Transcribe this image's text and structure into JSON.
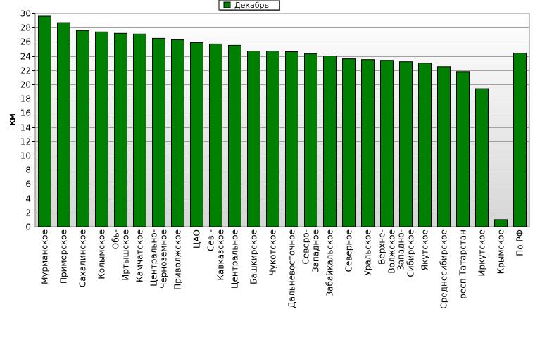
{
  "chart_data": {
    "type": "bar",
    "title": "",
    "xlabel": "",
    "ylabel": "км",
    "ylim": [
      0,
      30
    ],
    "ytick_step": 2,
    "grid": true,
    "legend_position": "top-center",
    "series": [
      {
        "name": "Декабрь",
        "color": "#008000",
        "values": [
          29.6,
          28.7,
          27.6,
          27.4,
          27.2,
          27.1,
          26.5,
          26.3,
          25.9,
          25.7,
          25.5,
          24.7,
          24.7,
          24.6,
          24.3,
          24.0,
          23.6,
          23.5,
          23.4,
          23.2,
          23.0,
          22.5,
          21.8,
          19.4,
          1.0,
          24.4
        ]
      }
    ],
    "categories": [
      [
        "Мурманское"
      ],
      [
        "Приморское"
      ],
      [
        "Сахалинское"
      ],
      [
        "Колымское"
      ],
      [
        "Обь-",
        "Иртышское"
      ],
      [
        "Камчатское"
      ],
      [
        "Центрально-",
        "Черноземное"
      ],
      [
        "Приволжское"
      ],
      [
        "ЦАО"
      ],
      [
        "Сев.-",
        "Кавказское"
      ],
      [
        "Центральное"
      ],
      [
        "Башкирское"
      ],
      [
        "Чукотское"
      ],
      [
        "Дальневосточное"
      ],
      [
        "Северо-",
        "Западное"
      ],
      [
        "Забайкальское"
      ],
      [
        "Северное"
      ],
      [
        "Уральское"
      ],
      [
        "Верхне-",
        "Волжское"
      ],
      [
        "Западно-",
        "Сибирское"
      ],
      [
        "Якутское"
      ],
      [
        "Среднесибирское"
      ],
      [
        "респ.Татарстан"
      ],
      [
        "Иркутское"
      ],
      [
        "Крымское"
      ],
      [
        "По РФ"
      ]
    ]
  },
  "colors": {
    "bar": "#008000",
    "bar_stroke": "#000000",
    "plot_bg_top": "#ffffff",
    "plot_bg_bottom": "#dcdcdc",
    "grid": "#a0a0a0"
  }
}
